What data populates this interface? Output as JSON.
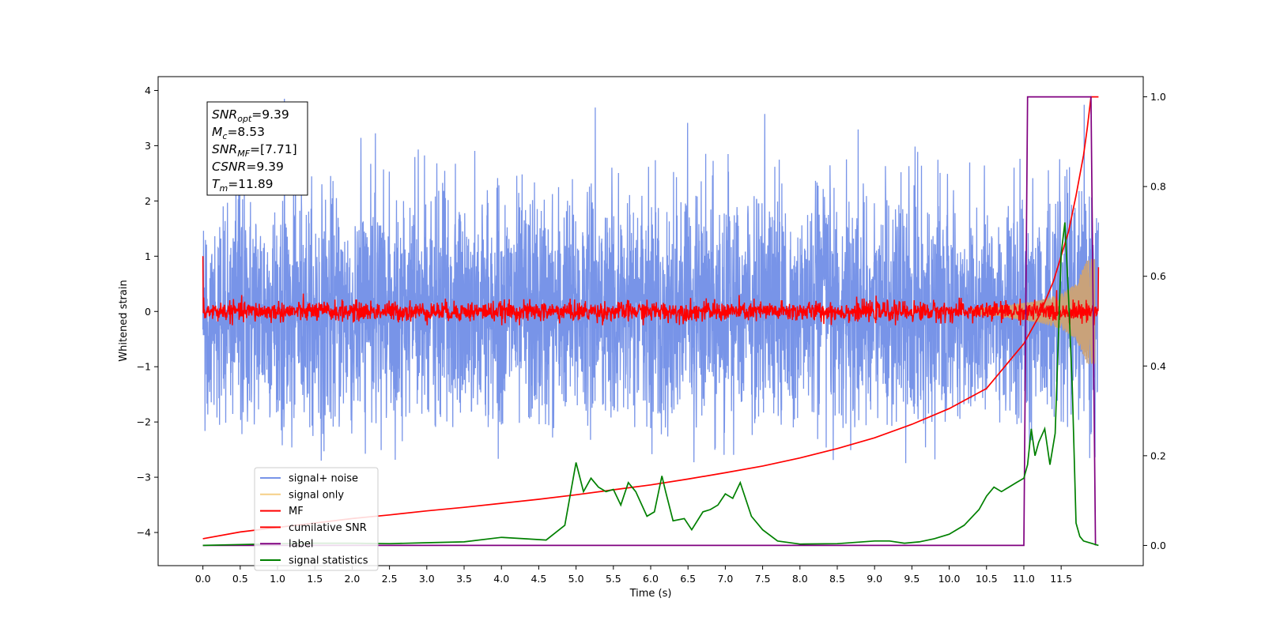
{
  "chart_data": {
    "type": "line",
    "xlabel": "Time (s)",
    "ylabel": "Whitened strain",
    "xlim": [
      -0.6,
      12.6
    ],
    "ylim": [
      -4.6,
      4.25
    ],
    "y2lim": [
      -0.045,
      1.045
    ],
    "x_ticks": [
      "0.0",
      "0.5",
      "1.0",
      "1.5",
      "2.0",
      "2.5",
      "3.0",
      "3.5",
      "4.0",
      "4.5",
      "5.0",
      "5.5",
      "6.0",
      "6.5",
      "7.0",
      "7.5",
      "8.0",
      "8.5",
      "9.0",
      "9.5",
      "10.0",
      "10.5",
      "11.0",
      "11.5"
    ],
    "y_ticks": [
      "4",
      "3",
      "2",
      "1",
      "0",
      "−1",
      "−2",
      "−3",
      "−4"
    ],
    "y2_ticks": [
      "1.0",
      "0.8",
      "0.6",
      "0.4",
      "0.2",
      "0.0"
    ],
    "legend": {
      "location": "lower-left",
      "entries": [
        {
          "label": "signal+ noise",
          "color": "#7894e8"
        },
        {
          "label": "signal only",
          "color": "#f5cf86"
        },
        {
          "label": "MF",
          "color": "#ff0000"
        },
        {
          "label": "cumilative SNR",
          "color": "#ff0000"
        },
        {
          "label": "label",
          "color": "#800080"
        },
        {
          "label": "signal statistics",
          "color": "#008000"
        }
      ]
    },
    "annotation": [
      {
        "name": "SNR",
        "sub": "opt",
        "value": "=9.39"
      },
      {
        "name": "M",
        "sub": "c",
        "value": "=8.53"
      },
      {
        "name": "SNR",
        "sub": "MF",
        "value": "=[7.71]"
      },
      {
        "name": "CSNR",
        "sub": "",
        "value": "=9.39"
      },
      {
        "name": "T",
        "sub": "m",
        "value": "=11.89"
      }
    ],
    "series": [
      {
        "name": "signal+ noise",
        "axis": "left",
        "color": "#7894e8",
        "description_values": {
          "x_range": [
            0.0,
            12.0
          ],
          "y_range": [
            -2.7,
            3.85
          ]
        }
      },
      {
        "name": "signal only",
        "axis": "left",
        "color": "#f5cf86",
        "envelope": {
          "x": [
            10.3,
            10.8,
            11.2,
            11.5,
            11.7,
            11.85,
            11.95
          ],
          "amp": [
            0.05,
            0.12,
            0.2,
            0.32,
            0.5,
            0.95,
            0.95
          ]
        }
      },
      {
        "name": "MF",
        "axis": "left",
        "color": "#ff0000",
        "description_values": {
          "x_range": [
            0.0,
            12.0
          ],
          "y_range": [
            -0.25,
            0.4
          ],
          "start_value": 1.0
        }
      },
      {
        "name": "cumilative SNR",
        "axis": "right",
        "color": "#ff0000",
        "x": [
          0.0,
          0.5,
          1.0,
          1.5,
          2.0,
          2.5,
          3.0,
          3.5,
          4.0,
          4.5,
          5.0,
          5.5,
          6.0,
          6.5,
          7.0,
          7.5,
          8.0,
          8.5,
          9.0,
          9.5,
          10.0,
          10.5,
          11.0,
          11.2,
          11.4,
          11.6,
          11.7,
          11.8,
          11.85,
          11.9,
          12.0
        ],
        "values": [
          0.015,
          0.03,
          0.04,
          0.05,
          0.06,
          0.068,
          0.077,
          0.085,
          0.094,
          0.103,
          0.113,
          0.124,
          0.135,
          0.148,
          0.162,
          0.177,
          0.195,
          0.216,
          0.24,
          0.27,
          0.305,
          0.35,
          0.45,
          0.51,
          0.59,
          0.7,
          0.78,
          0.87,
          0.93,
          1.0,
          1.0
        ]
      },
      {
        "name": "label",
        "axis": "right",
        "color": "#800080",
        "x": [
          0.0,
          11.0,
          11.05,
          11.9,
          11.96
        ],
        "values": [
          0.0,
          0.0,
          1.0,
          1.0,
          0.0
        ]
      },
      {
        "name": "signal statistics",
        "axis": "right",
        "color": "#008000",
        "x": [
          0.0,
          0.5,
          1.0,
          1.5,
          2.0,
          2.5,
          3.0,
          3.5,
          4.0,
          4.3,
          4.6,
          4.85,
          5.0,
          5.1,
          5.2,
          5.3,
          5.4,
          5.5,
          5.6,
          5.7,
          5.8,
          5.95,
          6.05,
          6.15,
          6.2,
          6.3,
          6.45,
          6.55,
          6.7,
          6.8,
          6.9,
          7.0,
          7.1,
          7.2,
          7.25,
          7.35,
          7.5,
          7.7,
          8.0,
          8.5,
          9.0,
          9.2,
          9.4,
          9.6,
          9.8,
          10.0,
          10.2,
          10.4,
          10.5,
          10.6,
          10.7,
          10.8,
          10.9,
          11.0,
          11.05,
          11.1,
          11.15,
          11.2,
          11.28,
          11.35,
          11.42,
          11.5,
          11.55,
          11.6,
          11.65,
          11.7,
          11.75,
          11.8,
          11.9,
          12.0
        ],
        "values": [
          0.0,
          0.002,
          0.004,
          0.005,
          0.005,
          0.004,
          0.006,
          0.008,
          0.018,
          0.015,
          0.012,
          0.045,
          0.185,
          0.12,
          0.15,
          0.13,
          0.12,
          0.125,
          0.09,
          0.14,
          0.12,
          0.065,
          0.075,
          0.155,
          0.12,
          0.055,
          0.06,
          0.035,
          0.075,
          0.08,
          0.09,
          0.115,
          0.105,
          0.14,
          0.115,
          0.065,
          0.035,
          0.01,
          0.003,
          0.004,
          0.01,
          0.01,
          0.005,
          0.008,
          0.015,
          0.025,
          0.045,
          0.08,
          0.11,
          0.13,
          0.12,
          0.13,
          0.14,
          0.15,
          0.18,
          0.26,
          0.2,
          0.23,
          0.26,
          0.18,
          0.25,
          0.65,
          0.72,
          0.55,
          0.35,
          0.05,
          0.02,
          0.01,
          0.005,
          0.0
        ]
      }
    ]
  }
}
